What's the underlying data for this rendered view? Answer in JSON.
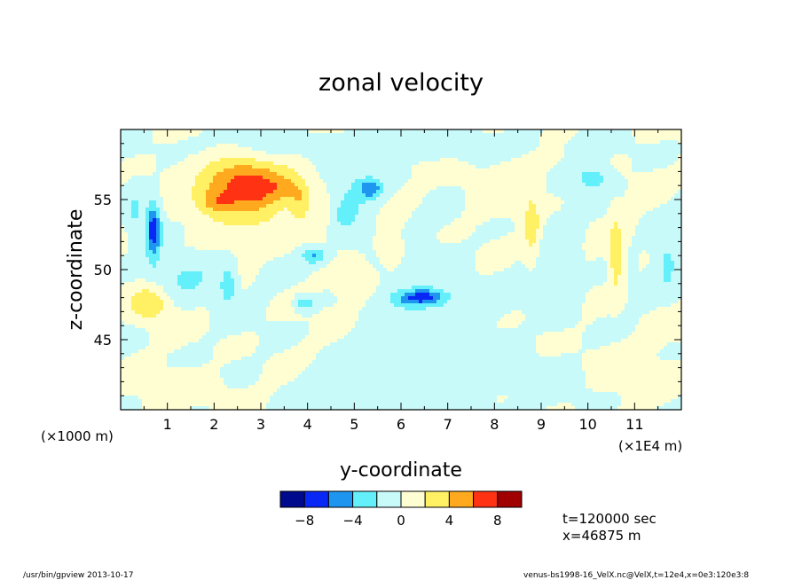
{
  "chart_data": {
    "type": "heatmap",
    "title": "zonal velocity",
    "xlabel": "y-coordinate",
    "ylabel": "z-coordinate",
    "x_unit_left": "(×1000 m)",
    "x_unit_right": "(×1E4 m)",
    "x_ticks": [
      "1",
      "2",
      "3",
      "4",
      "5",
      "6",
      "7",
      "8",
      "9",
      "10",
      "11"
    ],
    "x_tick_values": [
      1,
      2,
      3,
      4,
      5,
      6,
      7,
      8,
      9,
      10,
      11
    ],
    "xlim": [
      0,
      12
    ],
    "y_ticks": [
      "45",
      "50",
      "55"
    ],
    "y_tick_values": [
      45,
      50,
      55
    ],
    "ylim": [
      40,
      60
    ],
    "colorbar": {
      "bounds": [
        -10,
        -8,
        -6,
        -4,
        -2,
        0,
        2,
        4,
        6,
        8,
        10
      ],
      "colors": [
        "#000a8c",
        "#0a28f5",
        "#1e96f0",
        "#64f0fa",
        "#c8fafa",
        "#fffed2",
        "#fff064",
        "#ffaa1e",
        "#ff3214",
        "#a00000"
      ],
      "labels": [
        "−8",
        "−4",
        "0",
        "4",
        "8"
      ],
      "label_values": [
        -8,
        -4,
        0,
        4,
        8
      ]
    },
    "annotation_time": "t=120000 sec",
    "annotation_x": "x=46875 m",
    "footer_left": "/usr/bin/gpview  2013-10-17",
    "footer_right": "venus-bs1998-16_VelX.nc@VelX,t=12e4,x=0e3:120e3:8",
    "features": [
      {
        "x": 2.55,
        "z": 56.3,
        "sx": 0.85,
        "sz": 1.6,
        "amp": 6.5
      },
      {
        "x": 2.05,
        "z": 54.8,
        "sx": 0.45,
        "sz": 0.9,
        "amp": 3.5
      },
      {
        "x": 3.0,
        "z": 55.2,
        "sx": 0.55,
        "sz": 1.5,
        "amp": 2.6
      },
      {
        "x": 2.6,
        "z": 53.2,
        "sx": 1.3,
        "sz": 1.8,
        "amp": 1.4
      },
      {
        "x": 3.85,
        "z": 55.0,
        "sx": 0.22,
        "sz": 1.5,
        "amp": 3.2
      },
      {
        "x": 3.5,
        "z": 55.8,
        "sx": 0.3,
        "sz": 1.0,
        "amp": 2.2
      },
      {
        "x": 4.3,
        "z": 54.0,
        "sx": 0.22,
        "sz": 2.0,
        "amp": 2.2
      },
      {
        "x": 0.6,
        "z": 47.6,
        "sx": 0.4,
        "sz": 1.2,
        "amp": 4.2
      },
      {
        "x": 8.8,
        "z": 53.0,
        "sx": 0.16,
        "sz": 2.0,
        "amp": 3.8
      },
      {
        "x": 10.6,
        "z": 51.0,
        "sx": 0.13,
        "sz": 2.6,
        "amp": 3.8
      },
      {
        "x": 5.0,
        "z": 49.0,
        "sx": 0.35,
        "sz": 1.2,
        "amp": 1.9
      },
      {
        "x": 5.8,
        "z": 51.5,
        "sx": 0.3,
        "sz": 1.2,
        "amp": 1.5
      },
      {
        "x": 6.25,
        "z": 55.2,
        "sx": 0.15,
        "sz": 0.5,
        "amp": 1.5
      },
      {
        "x": 0.7,
        "z": 52.8,
        "sx": 0.16,
        "sz": 2.0,
        "amp": -7.5
      },
      {
        "x": 0.3,
        "z": 54.0,
        "sx": 0.2,
        "sz": 2.0,
        "amp": -2.4
      },
      {
        "x": 6.45,
        "z": 48.0,
        "sx": 0.55,
        "sz": 0.6,
        "amp": -6.2
      },
      {
        "x": 5.35,
        "z": 55.8,
        "sx": 0.28,
        "sz": 0.75,
        "amp": -4.8
      },
      {
        "x": 4.85,
        "z": 54.5,
        "sx": 0.5,
        "sz": 2.5,
        "amp": -2.4
      },
      {
        "x": 4.15,
        "z": 51.0,
        "sx": 0.28,
        "sz": 0.6,
        "amp": -4.2
      },
      {
        "x": 3.95,
        "z": 47.6,
        "sx": 0.2,
        "sz": 0.5,
        "amp": -3.6
      },
      {
        "x": 2.3,
        "z": 48.8,
        "sx": 0.16,
        "sz": 1.2,
        "amp": -3.6
      },
      {
        "x": 10.1,
        "z": 56.5,
        "sx": 0.35,
        "sz": 0.9,
        "amp": -3.2
      },
      {
        "x": 11.7,
        "z": 50.5,
        "sx": 0.25,
        "sz": 2.0,
        "amp": -2.5
      },
      {
        "x": 1.5,
        "z": 49.5,
        "sx": 0.7,
        "sz": 1.6,
        "amp": -2.3
      },
      {
        "x": 6.6,
        "z": 46.0,
        "sx": 1.1,
        "sz": 5.0,
        "amp": -1.2
      },
      {
        "x": 9.4,
        "z": 50.0,
        "sx": 0.4,
        "sz": 3.5,
        "amp": -1.4
      },
      {
        "x": 5.5,
        "z": 58.8,
        "sx": 3.5,
        "sz": 0.8,
        "amp": -1.4
      },
      {
        "x": 8.6,
        "z": 42.5,
        "sx": 1.8,
        "sz": 2.0,
        "amp": -0.8
      },
      {
        "x": 5.2,
        "z": 41.5,
        "sx": 1.6,
        "sz": 1.6,
        "amp": -0.9
      },
      {
        "x": 1.5,
        "z": 41.5,
        "sx": 1.0,
        "sz": 1.2,
        "amp": 0.9
      },
      {
        "x": 8.2,
        "z": 56.0,
        "sx": 1.0,
        "sz": 2.0,
        "amp": 0.8
      },
      {
        "x": 10.5,
        "z": 43.0,
        "sx": 1.0,
        "sz": 2.0,
        "amp": 0.9
      }
    ]
  }
}
